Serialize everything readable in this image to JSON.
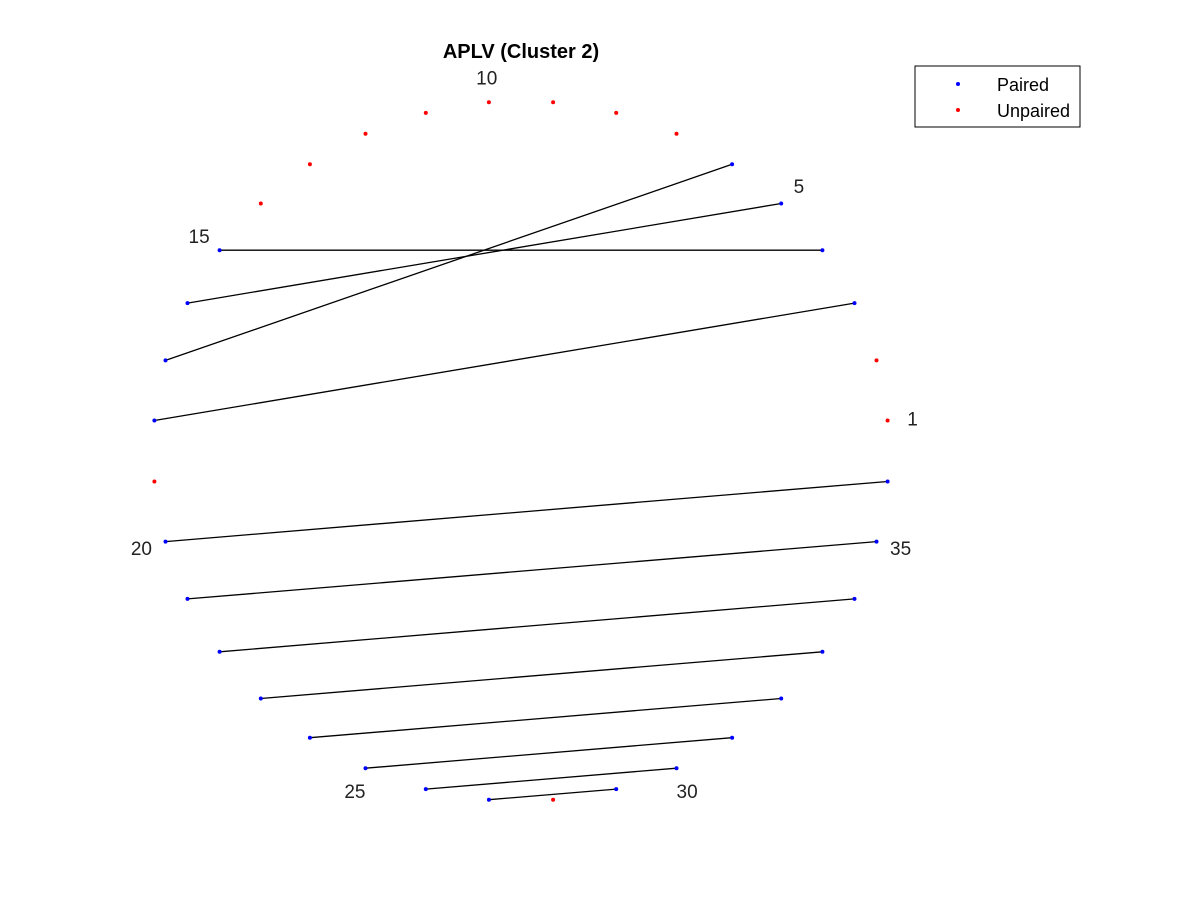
{
  "chart_data": {
    "type": "scatter",
    "title": "APLV (Cluster 2)",
    "xlabel": "",
    "ylabel": "",
    "axes_visible": false,
    "n_positions": 36,
    "layout": "circle",
    "position_labels": [
      1,
      5,
      10,
      15,
      20,
      25,
      30,
      35
    ],
    "legend": {
      "placement": "top-right",
      "entries": [
        {
          "key": "paired",
          "label": "Paired",
          "color": "#0000ff"
        },
        {
          "key": "unpaired",
          "label": "Unpaired",
          "color": "#ff0000"
        }
      ]
    },
    "series": [
      {
        "name": "Paired",
        "color": "#0000ff",
        "positions": [
          3,
          4,
          5,
          6,
          15,
          16,
          17,
          18,
          20,
          21,
          22,
          23,
          24,
          25,
          26,
          27,
          29,
          30,
          31,
          32,
          33,
          34,
          35,
          36
        ]
      },
      {
        "name": "Unpaired",
        "color": "#ff0000",
        "positions": [
          1,
          2,
          7,
          8,
          9,
          10,
          11,
          12,
          13,
          14,
          19,
          28
        ]
      }
    ],
    "pairs": [
      [
        4,
        15
      ],
      [
        5,
        16
      ],
      [
        6,
        17
      ],
      [
        3,
        18
      ],
      [
        20,
        36
      ],
      [
        21,
        35
      ],
      [
        22,
        34
      ],
      [
        23,
        33
      ],
      [
        24,
        32
      ],
      [
        25,
        31
      ],
      [
        26,
        30
      ],
      [
        27,
        29
      ]
    ],
    "line_color": "#000000"
  }
}
